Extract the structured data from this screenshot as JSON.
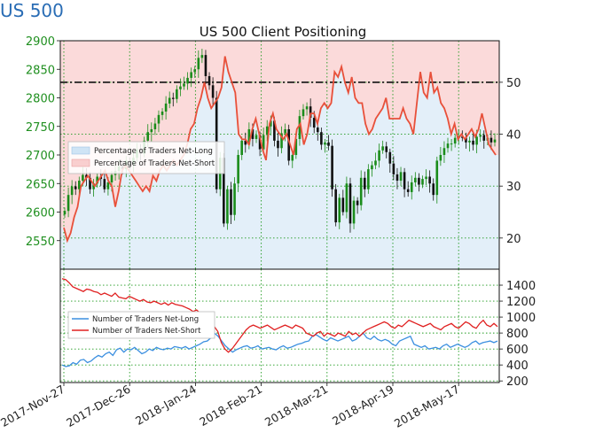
{
  "page": {
    "title": "US 500"
  },
  "chart_data": [
    {
      "type": "candlestick",
      "title": "US 500 Client Positioning",
      "left_axis": {
        "ticks": [
          2550,
          2600,
          2650,
          2700,
          2750,
          2800,
          2850,
          2900
        ],
        "ylim": [
          2500,
          2900
        ],
        "color": "#1f8f1f"
      },
      "right_axis": {
        "ticks": [
          20,
          30,
          40,
          50
        ],
        "ylim": [
          14,
          58
        ]
      },
      "x_tick_labels": [
        "2017-Nov-27",
        "2017-Dec-26",
        "2018-Jan-24",
        "2018-Feb-21",
        "2018-Mar-21",
        "2018-Apr-19",
        "2018-May-17"
      ],
      "grid": true,
      "reference_line": {
        "value": 50,
        "style": "dash-dot"
      },
      "legend": {
        "placement": "left",
        "entries": [
          {
            "label": "Percentage of Traders Net-Long",
            "color": "#cfe4f5"
          },
          {
            "label": "Percentage of Traders Net-Short",
            "color": "#f9cfcf"
          }
        ]
      },
      "series": [
        {
          "name": "US 500 price",
          "kind": "candles",
          "close": [
            2602,
            2630,
            2645,
            2640,
            2655,
            2665,
            2660,
            2640,
            2650,
            2662,
            2658,
            2640,
            2652,
            2665,
            2672,
            2680,
            2675,
            2690,
            2683,
            2695,
            2710,
            2702,
            2725,
            2740,
            2745,
            2755,
            2770,
            2776,
            2790,
            2800,
            2798,
            2815,
            2820,
            2825,
            2835,
            2845,
            2850,
            2870,
            2875,
            2838,
            2822,
            2800,
            2640,
            2695,
            2580,
            2640,
            2595,
            2650,
            2700,
            2725,
            2718,
            2745,
            2728,
            2735,
            2710,
            2735,
            2750,
            2760,
            2725,
            2712,
            2738,
            2745,
            2690,
            2700,
            2728,
            2768,
            2780,
            2785,
            2765,
            2748,
            2740,
            2718,
            2722,
            2716,
            2640,
            2582,
            2625,
            2600,
            2650,
            2580,
            2620,
            2612,
            2660,
            2640,
            2675,
            2682,
            2690,
            2708,
            2715,
            2705,
            2685,
            2666,
            2655,
            2670,
            2640,
            2635,
            2652,
            2660,
            2648,
            2658,
            2662,
            2650,
            2630,
            2690,
            2700,
            2712,
            2720,
            2720,
            2730,
            2732,
            2730,
            2722,
            2725,
            2718,
            2732,
            2735,
            2725,
            2730,
            2722,
            2727
          ]
        },
        {
          "name": "Percentage of Traders Net-Long",
          "kind": "area",
          "color": "#cfe4f5",
          "values": [
            22,
            19.5,
            21,
            24,
            26,
            30,
            31,
            32,
            31,
            30,
            31,
            32,
            33,
            31,
            30,
            26,
            29,
            33,
            34,
            33,
            32,
            31,
            30,
            29,
            30,
            29,
            32,
            31,
            33,
            34,
            33,
            34,
            35,
            34,
            35,
            36,
            38,
            41,
            42,
            45,
            47,
            50,
            47,
            45,
            46,
            47,
            49,
            55,
            52,
            50,
            48,
            40,
            39,
            39,
            38,
            41,
            43,
            40,
            37,
            35,
            42,
            44,
            41,
            40,
            39,
            40,
            38,
            36,
            41,
            42,
            38,
            40,
            44,
            44,
            42,
            45,
            46,
            45,
            46,
            52,
            51,
            53,
            50,
            48,
            51,
            47,
            46,
            46,
            42,
            40,
            41,
            43,
            44,
            45,
            47,
            43,
            43,
            43,
            43,
            45,
            43,
            42,
            40,
            46,
            52,
            48,
            47,
            52,
            48,
            49,
            46,
            45,
            43,
            40,
            42,
            39,
            40,
            39,
            40,
            41,
            39.5,
            41,
            44,
            41,
            38,
            37,
            36
          ]
        }
      ]
    },
    {
      "type": "line",
      "right_axis": {
        "ticks": [
          200,
          400,
          600,
          800,
          1000,
          1200,
          1400
        ],
        "ylim": [
          180,
          1600
        ]
      },
      "grid": true,
      "legend": {
        "placement": "left",
        "entries": [
          {
            "label": "Number of Traders Net-Long",
            "color": "#3b8fe0"
          },
          {
            "label": "Number of Traders Net-Short",
            "color": "#e02020"
          }
        ]
      },
      "series": [
        {
          "name": "Number of Traders Net-Long",
          "color": "#3b8fe0",
          "values": [
            400,
            380,
            390,
            430,
            410,
            460,
            470,
            430,
            450,
            490,
            520,
            500,
            540,
            560,
            520,
            590,
            610,
            560,
            600,
            590,
            620,
            580,
            540,
            560,
            600,
            580,
            620,
            600,
            590,
            610,
            600,
            630,
            620,
            610,
            630,
            600,
            620,
            640,
            660,
            690,
            700,
            740,
            800,
            760,
            700,
            640,
            600,
            560,
            590,
            610,
            630,
            640,
            610,
            620,
            640,
            600,
            610,
            620,
            600,
            590,
            620,
            640,
            610,
            620,
            640,
            660,
            670,
            690,
            700,
            760,
            780,
            750,
            720,
            700,
            740,
            720,
            700,
            720,
            740,
            760,
            700,
            720,
            760,
            800,
            740,
            720,
            760,
            720,
            700,
            720,
            700,
            660,
            640,
            700,
            720,
            740,
            760,
            660,
            640,
            620,
            640,
            600,
            610,
            620,
            600,
            640,
            660,
            620,
            640,
            660,
            640,
            620,
            640,
            680,
            700,
            660,
            680,
            690,
            700,
            680,
            700
          ]
        },
        {
          "name": "Number of Traders Net-Short",
          "color": "#e02020",
          "values": [
            1480,
            1470,
            1430,
            1380,
            1360,
            1340,
            1320,
            1350,
            1340,
            1320,
            1310,
            1280,
            1300,
            1280,
            1260,
            1300,
            1250,
            1240,
            1230,
            1260,
            1240,
            1220,
            1200,
            1220,
            1190,
            1180,
            1200,
            1180,
            1160,
            1180,
            1150,
            1180,
            1160,
            1150,
            1140,
            1120,
            1100,
            1070,
            1090,
            1050,
            1000,
            960,
            900,
            880,
            820,
            680,
            600,
            560,
            600,
            660,
            720,
            780,
            840,
            880,
            900,
            880,
            860,
            880,
            900,
            870,
            840,
            860,
            880,
            900,
            880,
            860,
            900,
            880,
            860,
            800,
            780,
            760,
            800,
            820,
            760,
            800,
            780,
            760,
            800,
            780,
            760,
            820,
            780,
            800,
            760,
            800,
            840,
            860,
            880,
            900,
            920,
            940,
            920,
            880,
            860,
            900,
            880,
            920,
            960,
            940,
            920,
            900,
            880,
            900,
            920,
            880,
            860,
            840,
            880,
            900,
            920,
            880,
            860,
            900,
            940,
            920,
            880,
            860,
            920,
            960,
            900,
            880,
            920,
            880
          ]
        }
      ]
    }
  ]
}
